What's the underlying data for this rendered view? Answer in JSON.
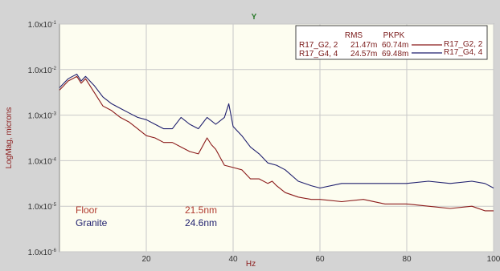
{
  "chart_data": {
    "type": "line",
    "title": "Y",
    "xlabel": "Hz",
    "ylabel": "LogMag, microns",
    "xlim": [
      0,
      100
    ],
    "ylog": true,
    "ylim_log10": [
      -6,
      -1
    ],
    "x_ticks": [
      20,
      40,
      60,
      80,
      100
    ],
    "x_tick_labels": [
      "20",
      "40",
      "60",
      "80",
      "100"
    ],
    "y_ticks": [
      {
        "base": "1.0x10",
        "exp": "-1"
      },
      {
        "base": "1.0x10",
        "exp": "-2"
      },
      {
        "base": "1.0x10",
        "exp": "-3"
      },
      {
        "base": "1.0x10",
        "exp": "-4"
      },
      {
        "base": "1.0x10",
        "exp": "-5"
      },
      {
        "base": "1.0x10",
        "exp": "-6"
      }
    ],
    "grid": true,
    "legend": {
      "placement": "top-right",
      "header_rms": "RMS",
      "header_pkpk": "PKPK",
      "rows": [
        {
          "name": "R17_G2, 2",
          "rms": "21.47m",
          "pkpk": "60.74m",
          "color": "#8b1a1a"
        },
        {
          "name": "R17_G4, 4",
          "rms": "24.57m",
          "pkpk": "69.48m",
          "color": "#1f1f6e"
        }
      ]
    },
    "annotations": [
      {
        "label": "Floor",
        "value": "21.5nm",
        "color": "#b03a2e"
      },
      {
        "label": "Granite",
        "value": "24.6nm",
        "color": "#1f1f6e"
      }
    ],
    "series": [
      {
        "name": "R17_G2, 2",
        "color": "#8b1a1a",
        "x": [
          0,
          1,
          2,
          3,
          4,
          5,
          6,
          8,
          10,
          12,
          14,
          16,
          18,
          20,
          22,
          24,
          26,
          28,
          30,
          32,
          34,
          35,
          36,
          38,
          40,
          42,
          44,
          46,
          48,
          49,
          50,
          52,
          55,
          58,
          60,
          65,
          70,
          75,
          80,
          85,
          90,
          95,
          98,
          100
        ],
        "log10": [
          -2.45,
          -2.35,
          -2.25,
          -2.2,
          -2.15,
          -2.3,
          -2.2,
          -2.5,
          -2.8,
          -2.9,
          -3.05,
          -3.15,
          -3.3,
          -3.45,
          -3.5,
          -3.6,
          -3.6,
          -3.7,
          -3.8,
          -3.85,
          -3.5,
          -3.65,
          -3.75,
          -4.1,
          -4.15,
          -4.2,
          -4.4,
          -4.4,
          -4.5,
          -4.45,
          -4.55,
          -4.7,
          -4.8,
          -4.85,
          -4.85,
          -4.9,
          -4.85,
          -4.95,
          -4.95,
          -5.0,
          -5.05,
          -5.0,
          -5.1,
          -5.1
        ]
      },
      {
        "name": "R17_G4, 4",
        "color": "#1f1f6e",
        "x": [
          0,
          1,
          2,
          3,
          4,
          5,
          6,
          8,
          10,
          12,
          14,
          16,
          18,
          20,
          22,
          24,
          26,
          28,
          30,
          32,
          34,
          36,
          38,
          39,
          40,
          42,
          44,
          46,
          48,
          50,
          52,
          55,
          58,
          60,
          65,
          70,
          75,
          80,
          85,
          90,
          95,
          98,
          100
        ],
        "log10": [
          -2.4,
          -2.3,
          -2.2,
          -2.15,
          -2.1,
          -2.25,
          -2.15,
          -2.35,
          -2.6,
          -2.75,
          -2.85,
          -2.95,
          -3.05,
          -3.1,
          -3.2,
          -3.3,
          -3.3,
          -3.05,
          -3.2,
          -3.3,
          -3.05,
          -3.2,
          -3.05,
          -2.75,
          -3.25,
          -3.45,
          -3.7,
          -3.85,
          -4.05,
          -4.1,
          -4.2,
          -4.45,
          -4.55,
          -4.6,
          -4.5,
          -4.5,
          -4.5,
          -4.5,
          -4.45,
          -4.5,
          -4.45,
          -4.5,
          -4.6
        ]
      }
    ]
  }
}
